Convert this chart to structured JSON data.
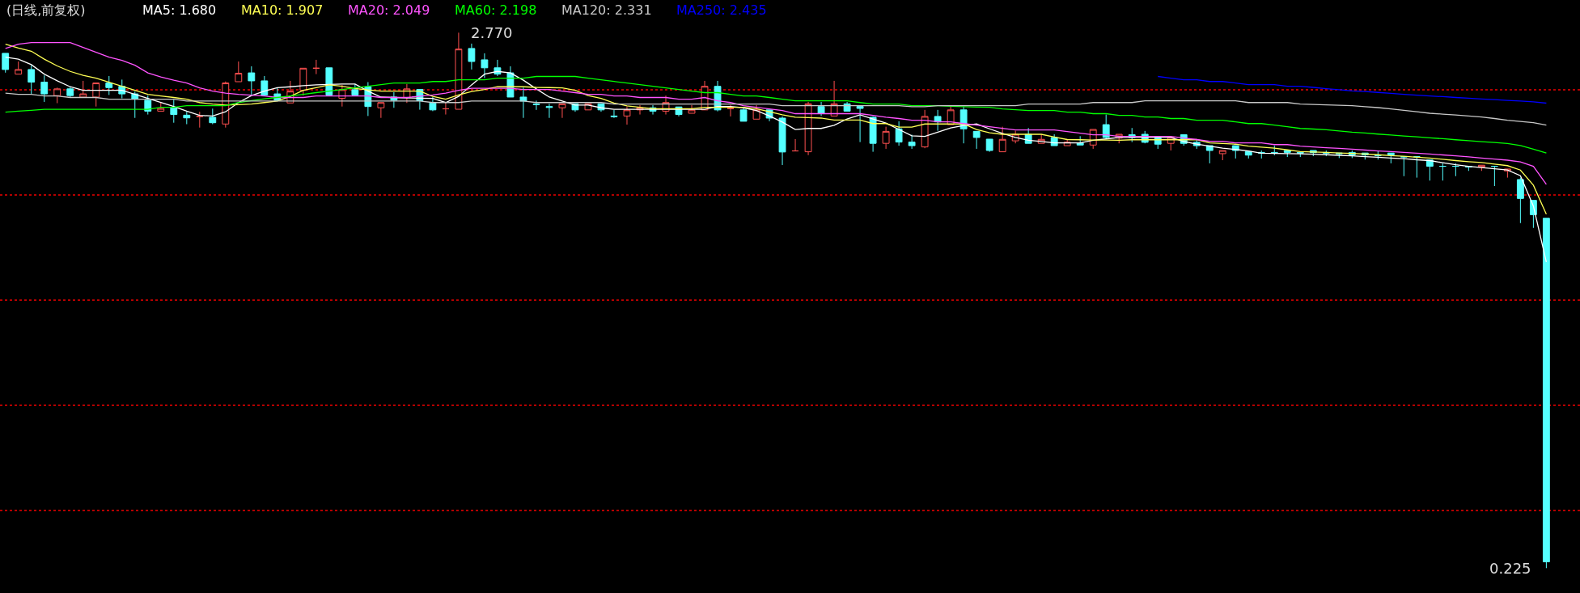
{
  "chart_data": {
    "type": "candlestick",
    "title": "(日线,前复权)",
    "categories": [
      null,
      null,
      null,
      null,
      null,
      null,
      null,
      null,
      null,
      null,
      null,
      null,
      null,
      null,
      null,
      null,
      null,
      null,
      null,
      null,
      null,
      null,
      null,
      null,
      null,
      null,
      null,
      null,
      null,
      null,
      null,
      null,
      null,
      null,
      null,
      null,
      null,
      null,
      null,
      null,
      null,
      null,
      null,
      null,
      null,
      null,
      null,
      null,
      null,
      null,
      null,
      null,
      null,
      null,
      null,
      null,
      null,
      null,
      null,
      null,
      null,
      null,
      null,
      null,
      null,
      null,
      null,
      null,
      null,
      null,
      null,
      null,
      null,
      null,
      null,
      null,
      null,
      null,
      null,
      null,
      null,
      null,
      null,
      null,
      null,
      null,
      null,
      null,
      null,
      null,
      null,
      null,
      null,
      null,
      null,
      null,
      null,
      null,
      null,
      null,
      null,
      null,
      null,
      null,
      null,
      null,
      null,
      null,
      null,
      null,
      null,
      null,
      null,
      null,
      null,
      null,
      null,
      null,
      null,
      null
    ],
    "ohlc": [
      [
        2.672,
        2.672,
        2.58,
        2.595
      ],
      [
        2.573,
        2.633,
        2.573,
        2.595
      ],
      [
        2.595,
        2.615,
        2.479,
        2.535
      ],
      [
        2.535,
        2.567,
        2.441,
        2.479
      ],
      [
        2.471,
        2.509,
        2.435,
        2.503
      ],
      [
        2.503,
        2.513,
        2.464,
        2.471
      ],
      [
        2.464,
        2.541,
        2.464,
        2.479
      ],
      [
        2.464,
        2.531,
        2.419,
        2.531
      ],
      [
        2.531,
        2.564,
        2.474,
        2.509
      ],
      [
        2.515,
        2.547,
        2.458,
        2.479
      ],
      [
        2.479,
        2.49,
        2.365,
        2.454
      ],
      [
        2.449,
        2.471,
        2.381,
        2.397
      ],
      [
        2.397,
        2.441,
        2.397,
        2.41
      ],
      [
        2.413,
        2.451,
        2.342,
        2.381
      ],
      [
        2.378,
        2.394,
        2.335,
        2.365
      ],
      [
        2.372,
        2.394,
        2.319,
        2.372
      ],
      [
        2.368,
        2.409,
        2.335,
        2.342
      ],
      [
        2.336,
        2.538,
        2.319,
        2.531
      ],
      [
        2.537,
        2.633,
        2.537,
        2.577
      ],
      [
        2.579,
        2.61,
        2.474,
        2.541
      ],
      [
        2.541,
        2.564,
        2.47,
        2.474
      ],
      [
        2.479,
        2.509,
        2.449,
        2.449
      ],
      [
        2.436,
        2.541,
        2.436,
        2.492
      ],
      [
        2.496,
        2.601,
        2.471,
        2.601
      ],
      [
        2.601,
        2.641,
        2.573,
        2.601
      ],
      [
        2.603,
        2.603,
        2.474,
        2.474
      ],
      [
        2.458,
        2.522,
        2.419,
        2.499
      ],
      [
        2.499,
        2.526,
        2.474,
        2.474
      ],
      [
        2.513,
        2.535,
        2.374,
        2.419
      ],
      [
        2.413,
        2.438,
        2.365,
        2.438
      ],
      [
        2.464,
        2.487,
        2.413,
        2.449
      ],
      [
        2.462,
        2.526,
        2.436,
        2.503
      ],
      [
        2.5,
        2.5,
        2.404,
        2.447
      ],
      [
        2.436,
        2.464,
        2.397,
        2.403
      ],
      [
        2.408,
        2.436,
        2.381,
        2.408
      ],
      [
        2.406,
        2.77,
        2.406,
        2.692
      ],
      [
        2.695,
        2.718,
        2.595,
        2.633
      ],
      [
        2.641,
        2.672,
        2.554,
        2.603
      ],
      [
        2.603,
        2.641,
        2.564,
        2.573
      ],
      [
        2.579,
        2.61,
        2.464,
        2.464
      ],
      [
        2.464,
        2.509,
        2.365,
        2.445
      ],
      [
        2.431,
        2.447,
        2.403,
        2.428
      ],
      [
        2.419,
        2.432,
        2.365,
        2.415
      ],
      [
        2.413,
        2.432,
        2.365,
        2.432
      ],
      [
        2.432,
        2.432,
        2.394,
        2.403
      ],
      [
        2.403,
        2.432,
        2.403,
        2.432
      ],
      [
        2.432,
        2.432,
        2.394,
        2.403
      ],
      [
        2.374,
        2.403,
        2.365,
        2.371
      ],
      [
        2.374,
        2.419,
        2.333,
        2.403
      ],
      [
        2.403,
        2.426,
        2.381,
        2.413
      ],
      [
        2.413,
        2.426,
        2.381,
        2.397
      ],
      [
        2.397,
        2.471,
        2.381,
        2.438
      ],
      [
        2.417,
        2.417,
        2.372,
        2.381
      ],
      [
        2.387,
        2.426,
        2.387,
        2.403
      ],
      [
        2.403,
        2.541,
        2.403,
        2.515
      ],
      [
        2.515,
        2.541,
        2.396,
        2.403
      ],
      [
        2.41,
        2.426,
        2.372,
        2.41
      ],
      [
        2.403,
        2.413,
        2.349,
        2.349
      ],
      [
        2.359,
        2.426,
        2.359,
        2.403
      ],
      [
        2.403,
        2.403,
        2.349,
        2.364
      ],
      [
        2.364,
        2.372,
        2.141,
        2.203
      ],
      [
        2.208,
        2.264,
        2.208,
        2.208
      ],
      [
        2.204,
        2.441,
        2.188,
        2.432
      ],
      [
        2.419,
        2.441,
        2.374,
        2.387
      ],
      [
        2.374,
        2.541,
        2.374,
        2.432
      ],
      [
        2.432,
        2.441,
        2.397,
        2.397
      ],
      [
        2.42,
        2.42,
        2.25,
        2.41
      ],
      [
        2.368,
        2.372,
        2.204,
        2.244
      ],
      [
        2.244,
        2.323,
        2.218,
        2.301
      ],
      [
        2.313,
        2.349,
        2.233,
        2.25
      ],
      [
        2.25,
        2.285,
        2.218,
        2.233
      ],
      [
        2.227,
        2.403,
        2.221,
        2.372
      ],
      [
        2.372,
        2.403,
        2.304,
        2.346
      ],
      [
        2.333,
        2.419,
        2.333,
        2.403
      ],
      [
        2.403,
        2.419,
        2.244,
        2.313
      ],
      [
        2.301,
        2.301,
        2.218,
        2.272
      ],
      [
        2.264,
        2.264,
        2.204,
        2.21
      ],
      [
        2.204,
        2.323,
        2.204,
        2.263
      ],
      [
        2.256,
        2.304,
        2.244,
        2.287
      ],
      [
        2.287,
        2.317,
        2.244,
        2.244
      ],
      [
        2.244,
        2.287,
        2.244,
        2.263
      ],
      [
        2.272,
        2.287,
        2.233,
        2.233
      ],
      [
        2.233,
        2.265,
        2.233,
        2.25
      ],
      [
        2.246,
        2.278,
        2.236,
        2.236
      ],
      [
        2.236,
        2.31,
        2.218,
        2.31
      ],
      [
        2.333,
        2.381,
        2.264,
        2.272
      ],
      [
        2.269,
        2.287,
        2.244,
        2.287
      ],
      [
        2.285,
        2.317,
        2.25,
        2.272
      ],
      [
        2.287,
        2.303,
        2.244,
        2.249
      ],
      [
        2.272,
        2.272,
        2.218,
        2.24
      ],
      [
        2.244,
        2.272,
        2.21,
        2.272
      ],
      [
        2.285,
        2.287,
        2.233,
        2.244
      ],
      [
        2.249,
        2.259,
        2.218,
        2.233
      ],
      [
        2.233,
        2.233,
        2.149,
        2.21
      ],
      [
        2.195,
        2.21,
        2.164,
        2.21
      ],
      [
        2.233,
        2.233,
        2.172,
        2.21
      ],
      [
        2.205,
        2.205,
        2.172,
        2.188
      ],
      [
        2.201,
        2.21,
        2.172,
        2.198
      ],
      [
        2.201,
        2.233,
        2.187,
        2.198
      ],
      [
        2.21,
        2.21,
        2.179,
        2.201
      ],
      [
        2.201,
        2.201,
        2.179,
        2.198
      ],
      [
        2.21,
        2.21,
        2.183,
        2.2
      ],
      [
        2.201,
        2.21,
        2.183,
        2.198
      ],
      [
        2.198,
        2.198,
        2.174,
        2.195
      ],
      [
        2.201,
        2.21,
        2.174,
        2.189
      ],
      [
        2.198,
        2.198,
        2.167,
        2.189
      ],
      [
        2.189,
        2.21,
        2.167,
        2.186
      ],
      [
        2.198,
        2.198,
        2.149,
        2.189
      ],
      [
        2.18,
        2.18,
        2.088,
        2.18
      ],
      [
        2.18,
        2.18,
        2.081,
        2.18
      ],
      [
        2.165,
        2.165,
        2.067,
        2.135
      ],
      [
        2.135,
        2.149,
        2.067,
        2.135
      ],
      [
        2.135,
        2.149,
        2.088,
        2.135
      ],
      [
        2.135,
        2.135,
        2.113,
        2.132
      ],
      [
        2.131,
        2.14,
        2.113,
        2.14
      ],
      [
        2.135,
        2.135,
        2.041,
        2.135
      ],
      [
        2.113,
        2.122,
        2.081,
        2.122
      ],
      [
        2.072,
        2.081,
        1.865,
        1.982
      ],
      [
        1.973,
        1.973,
        1.842,
        1.905
      ],
      [
        1.888,
        1.888,
        0.225,
        0.255
      ]
    ],
    "series": [
      {
        "name": "MA5: 1.680",
        "type": "line",
        "color": "#ffffff",
        "values": [
          2.654,
          2.644,
          2.618,
          2.573,
          2.541,
          2.513,
          2.496,
          2.496,
          2.496,
          2.496,
          2.477,
          2.458,
          2.438,
          2.419,
          2.397,
          2.377,
          2.374,
          2.394,
          2.438,
          2.471,
          2.492,
          2.509,
          2.513,
          2.518,
          2.522,
          2.524,
          2.526,
          2.526,
          2.492,
          2.464,
          2.462,
          2.46,
          2.459,
          2.458,
          2.438,
          2.467,
          2.522,
          2.573,
          2.586,
          2.579,
          2.544,
          2.503,
          2.464,
          2.445,
          2.426,
          2.426,
          2.413,
          2.406,
          2.406,
          2.406,
          2.406,
          2.406,
          2.406,
          2.406,
          2.406,
          2.419,
          2.419,
          2.413,
          2.4,
          2.374,
          2.345,
          2.31,
          2.315,
          2.315,
          2.33,
          2.36,
          2.38,
          2.36,
          2.34,
          2.31,
          2.28,
          2.277,
          2.297,
          2.317,
          2.329,
          2.336,
          2.313,
          2.291,
          2.272,
          2.259,
          2.253,
          2.246,
          2.246,
          2.246,
          2.259,
          2.265,
          2.272,
          2.272,
          2.272,
          2.272,
          2.272,
          2.253,
          2.24,
          2.231,
          2.221,
          2.215,
          2.208,
          2.197,
          2.196,
          2.195,
          2.194,
          2.192,
          2.19,
          2.187,
          2.185,
          2.181,
          2.178,
          2.174,
          2.171,
          2.166,
          2.162,
          2.152,
          2.142,
          2.135,
          2.129,
          2.123,
          2.117,
          2.09,
          1.946,
          1.68
        ]
      },
      {
        "name": "MA10: 1.907",
        "type": "line",
        "color": "#ffff54",
        "values": [
          2.715,
          2.697,
          2.682,
          2.644,
          2.612,
          2.586,
          2.567,
          2.554,
          2.535,
          2.515,
          2.496,
          2.477,
          2.469,
          2.462,
          2.454,
          2.438,
          2.431,
          2.426,
          2.428,
          2.431,
          2.438,
          2.445,
          2.467,
          2.496,
          2.509,
          2.522,
          2.515,
          2.505,
          2.498,
          2.492,
          2.492,
          2.492,
          2.492,
          2.467,
          2.454,
          2.474,
          2.49,
          2.5,
          2.513,
          2.513,
          2.513,
          2.51,
          2.509,
          2.508,
          2.496,
          2.471,
          2.458,
          2.436,
          2.422,
          2.415,
          2.409,
          2.409,
          2.409,
          2.409,
          2.415,
          2.415,
          2.415,
          2.415,
          2.409,
          2.394,
          2.38,
          2.368,
          2.366,
          2.364,
          2.355,
          2.355,
          2.355,
          2.338,
          2.338,
          2.321,
          2.321,
          2.336,
          2.336,
          2.336,
          2.336,
          2.31,
          2.294,
          2.287,
          2.287,
          2.287,
          2.287,
          2.274,
          2.262,
          2.261,
          2.26,
          2.26,
          2.259,
          2.261,
          2.261,
          2.261,
          2.261,
          2.261,
          2.262,
          2.246,
          2.243,
          2.24,
          2.231,
          2.226,
          2.221,
          2.213,
          2.205,
          2.203,
          2.201,
          2.198,
          2.196,
          2.193,
          2.19,
          2.186,
          2.183,
          2.178,
          2.174,
          2.168,
          2.162,
          2.157,
          2.153,
          2.145,
          2.138,
          2.117,
          2.045,
          1.907
        ]
      },
      {
        "name": "MA20: 2.049",
        "type": "line",
        "color": "#ff54ff",
        "values": [
          2.695,
          2.715,
          2.723,
          2.723,
          2.723,
          2.723,
          2.7,
          2.677,
          2.654,
          2.638,
          2.615,
          2.579,
          2.56,
          2.544,
          2.531,
          2.508,
          2.492,
          2.483,
          2.477,
          2.473,
          2.469,
          2.462,
          2.462,
          2.462,
          2.469,
          2.469,
          2.469,
          2.469,
          2.469,
          2.462,
          2.462,
          2.462,
          2.468,
          2.474,
          2.483,
          2.496,
          2.506,
          2.506,
          2.506,
          2.506,
          2.5,
          2.5,
          2.5,
          2.492,
          2.485,
          2.477,
          2.477,
          2.469,
          2.469,
          2.462,
          2.462,
          2.462,
          2.454,
          2.454,
          2.462,
          2.446,
          2.438,
          2.423,
          2.415,
          2.408,
          2.4,
          2.385,
          2.385,
          2.385,
          2.385,
          2.385,
          2.385,
          2.377,
          2.368,
          2.362,
          2.354,
          2.354,
          2.346,
          2.346,
          2.338,
          2.331,
          2.323,
          2.315,
          2.308,
          2.308,
          2.308,
          2.308,
          2.3,
          2.292,
          2.285,
          2.285,
          2.277,
          2.277,
          2.277,
          2.277,
          2.277,
          2.269,
          2.262,
          2.254,
          2.254,
          2.246,
          2.246,
          2.246,
          2.238,
          2.238,
          2.231,
          2.227,
          2.223,
          2.22,
          2.216,
          2.212,
          2.208,
          2.205,
          2.201,
          2.197,
          2.193,
          2.189,
          2.185,
          2.18,
          2.174,
          2.169,
          2.164,
          2.156,
          2.135,
          2.049
        ]
      },
      {
        "name": "MA60: 2.198",
        "type": "line",
        "color": "#00ff00",
        "values": [
          2.392,
          2.397,
          2.401,
          2.406,
          2.406,
          2.406,
          2.406,
          2.406,
          2.406,
          2.406,
          2.406,
          2.406,
          2.415,
          2.415,
          2.423,
          2.423,
          2.423,
          2.423,
          2.438,
          2.447,
          2.456,
          2.462,
          2.469,
          2.477,
          2.485,
          2.492,
          2.5,
          2.508,
          2.515,
          2.523,
          2.531,
          2.531,
          2.531,
          2.538,
          2.538,
          2.546,
          2.546,
          2.546,
          2.554,
          2.554,
          2.554,
          2.562,
          2.562,
          2.562,
          2.562,
          2.554,
          2.546,
          2.538,
          2.531,
          2.523,
          2.515,
          2.508,
          2.5,
          2.492,
          2.485,
          2.485,
          2.477,
          2.469,
          2.469,
          2.462,
          2.454,
          2.446,
          2.446,
          2.446,
          2.446,
          2.446,
          2.438,
          2.431,
          2.431,
          2.431,
          2.423,
          2.423,
          2.423,
          2.42,
          2.418,
          2.416,
          2.415,
          2.408,
          2.404,
          2.4,
          2.4,
          2.4,
          2.392,
          2.392,
          2.385,
          2.385,
          2.377,
          2.377,
          2.369,
          2.369,
          2.362,
          2.362,
          2.354,
          2.354,
          2.354,
          2.346,
          2.338,
          2.338,
          2.331,
          2.323,
          2.315,
          2.312,
          2.309,
          2.303,
          2.297,
          2.293,
          2.288,
          2.284,
          2.279,
          2.275,
          2.27,
          2.266,
          2.261,
          2.257,
          2.252,
          2.248,
          2.243,
          2.234,
          2.216,
          2.198
        ]
      },
      {
        "name": "MA120: 2.331",
        "type": "line",
        "color": "#c8c8c8",
        "values": [
          2.483,
          2.477,
          2.477,
          2.469,
          2.469,
          2.462,
          2.462,
          2.462,
          2.454,
          2.454,
          2.454,
          2.454,
          2.454,
          2.454,
          2.445,
          2.445,
          2.445,
          2.445,
          2.445,
          2.445,
          2.445,
          2.445,
          2.445,
          2.445,
          2.445,
          2.445,
          2.445,
          2.445,
          2.445,
          2.445,
          2.445,
          2.445,
          2.445,
          2.438,
          2.438,
          2.438,
          2.445,
          2.445,
          2.445,
          2.445,
          2.445,
          2.438,
          2.438,
          2.438,
          2.438,
          2.438,
          2.438,
          2.431,
          2.431,
          2.431,
          2.431,
          2.431,
          2.431,
          2.431,
          2.431,
          2.431,
          2.431,
          2.431,
          2.431,
          2.431,
          2.423,
          2.423,
          2.423,
          2.423,
          2.423,
          2.423,
          2.423,
          2.423,
          2.423,
          2.423,
          2.418,
          2.418,
          2.423,
          2.423,
          2.423,
          2.423,
          2.423,
          2.423,
          2.423,
          2.431,
          2.431,
          2.431,
          2.431,
          2.431,
          2.438,
          2.438,
          2.438,
          2.438,
          2.446,
          2.446,
          2.446,
          2.446,
          2.446,
          2.446,
          2.446,
          2.446,
          2.438,
          2.438,
          2.438,
          2.438,
          2.431,
          2.429,
          2.427,
          2.425,
          2.423,
          2.418,
          2.414,
          2.408,
          2.401,
          2.394,
          2.387,
          2.383,
          2.379,
          2.374,
          2.369,
          2.362,
          2.354,
          2.348,
          2.342,
          2.331
        ]
      },
      {
        "name": "MA250: 2.435",
        "type": "line",
        "color": "#0000ff",
        "values": [
          null,
          null,
          null,
          null,
          null,
          null,
          null,
          null,
          null,
          null,
          null,
          null,
          null,
          null,
          null,
          null,
          null,
          null,
          null,
          null,
          null,
          null,
          null,
          null,
          null,
          null,
          null,
          null,
          null,
          null,
          null,
          null,
          null,
          null,
          null,
          null,
          null,
          null,
          null,
          null,
          null,
          null,
          null,
          null,
          null,
          null,
          null,
          null,
          null,
          null,
          null,
          null,
          null,
          null,
          null,
          null,
          null,
          null,
          null,
          null,
          null,
          null,
          null,
          null,
          null,
          null,
          null,
          null,
          null,
          null,
          null,
          null,
          null,
          null,
          null,
          null,
          null,
          null,
          null,
          null,
          null,
          null,
          null,
          null,
          null,
          null,
          null,
          null,
          null,
          2.562,
          2.554,
          2.546,
          2.546,
          2.538,
          2.538,
          2.531,
          2.523,
          2.523,
          2.523,
          2.515,
          2.515,
          2.51,
          2.504,
          2.499,
          2.493,
          2.49,
          2.486,
          2.482,
          2.477,
          2.473,
          2.469,
          2.466,
          2.462,
          2.459,
          2.455,
          2.452,
          2.448,
          2.445,
          2.441,
          2.435
        ]
      }
    ],
    "annotations": [
      "2.770",
      "0.225"
    ],
    "yticks": [
      {
        "value": 0.5,
        "label": null
      },
      {
        "value": 1.0,
        "label": null
      },
      {
        "value": 1.5,
        "label": null
      },
      {
        "value": 2.0,
        "label": null
      },
      {
        "value": 2.5,
        "label": null
      }
    ],
    "grid": "y",
    "line_style": "solid",
    "marker": "none"
  }
}
